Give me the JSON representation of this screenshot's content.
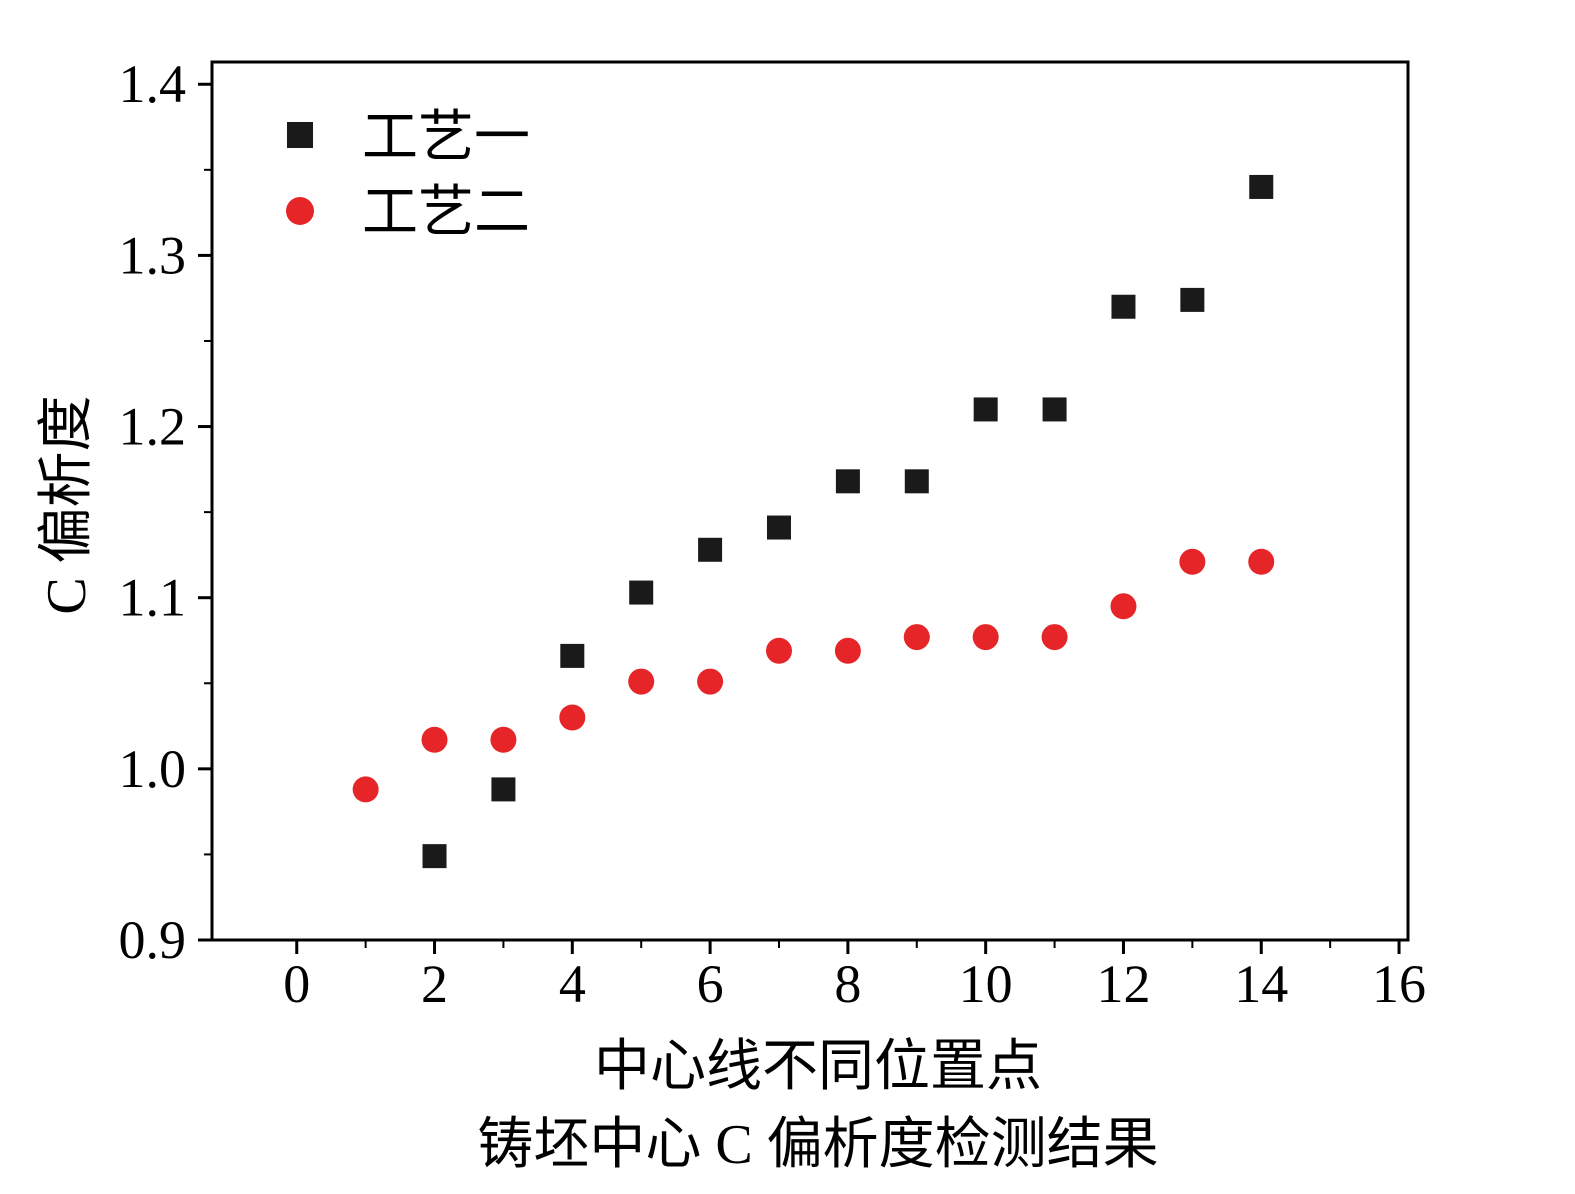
{
  "chart_data": {
    "type": "scatter",
    "title": "",
    "xlabel": "中心线不同位置点",
    "ylabel": "C 偏析度",
    "caption": "铸坯中心 C 偏析度检测结果",
    "xlim": [
      -1.23,
      16.13
    ],
    "ylim": [
      0.9,
      1.413
    ],
    "xticks": [
      0,
      2,
      4,
      6,
      8,
      10,
      12,
      14,
      16
    ],
    "xminor": [
      1,
      3,
      5,
      7,
      9,
      11,
      13,
      15
    ],
    "yticks": [
      "0.9",
      "1.0",
      "1.1",
      "1.2",
      "1.3",
      "1.4"
    ],
    "yminor": [
      0.95,
      1.05,
      1.15,
      1.25,
      1.35
    ],
    "grid": false,
    "legend_position": "top-left",
    "series": [
      {
        "name": "工艺一",
        "marker": "square",
        "color": "#1a1a1a",
        "points": [
          [
            2,
            0.949
          ],
          [
            3,
            0.988
          ],
          [
            4,
            1.066
          ],
          [
            5,
            1.103
          ],
          [
            6,
            1.128
          ],
          [
            7,
            1.141
          ],
          [
            8,
            1.168
          ],
          [
            9,
            1.168
          ],
          [
            10,
            1.21
          ],
          [
            11,
            1.21
          ],
          [
            12,
            1.27
          ],
          [
            13,
            1.274
          ],
          [
            14,
            1.34
          ]
        ]
      },
      {
        "name": "工艺二",
        "marker": "circle",
        "color": "#e62528",
        "points": [
          [
            1,
            0.988
          ],
          [
            2,
            1.017
          ],
          [
            3,
            1.017
          ],
          [
            4,
            1.03
          ],
          [
            5,
            1.051
          ],
          [
            6,
            1.051
          ],
          [
            7,
            1.069
          ],
          [
            8,
            1.069
          ],
          [
            9,
            1.077
          ],
          [
            10,
            1.077
          ],
          [
            11,
            1.077
          ],
          [
            12,
            1.095
          ],
          [
            13,
            1.121
          ],
          [
            14,
            1.121
          ]
        ]
      }
    ]
  }
}
